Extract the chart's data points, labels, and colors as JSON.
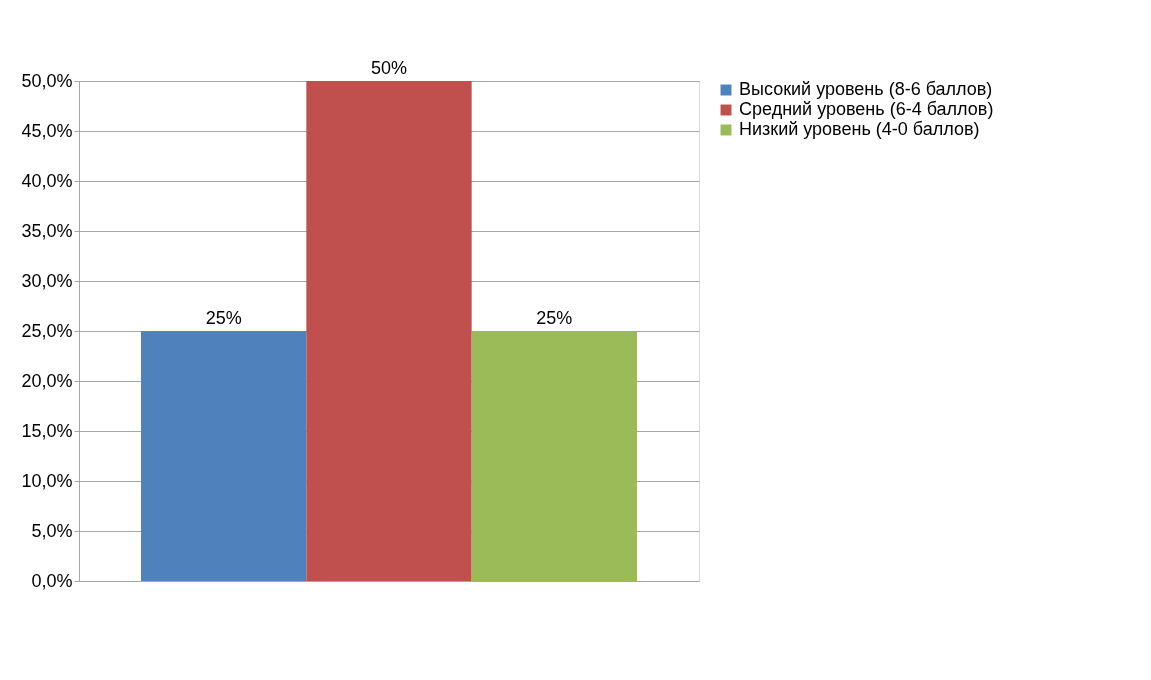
{
  "chart_data": {
    "type": "bar",
    "categories": [
      null
    ],
    "series": [
      {
        "name": "Высокий уровень (8-6 баллов)",
        "color": "#4f81bd",
        "values": [
          25
        ],
        "value_labels": [
          "25%"
        ]
      },
      {
        "name": "Средний уровень (6-4 баллов)",
        "color": "#c0504d",
        "values": [
          50
        ],
        "value_labels": [
          "50%"
        ]
      },
      {
        "name": "Низкий уровень (4-0 баллов)",
        "color": "#9bbb59",
        "values": [
          25
        ],
        "value_labels": [
          "25%"
        ]
      }
    ],
    "ylim": [
      0,
      50
    ],
    "yticks": [
      {
        "value": 0,
        "label": "0,0%"
      },
      {
        "value": 5,
        "label": "5,0%"
      },
      {
        "value": 10,
        "label": "10,0%"
      },
      {
        "value": 15,
        "label": "15,0%"
      },
      {
        "value": 20,
        "label": "20,0%"
      },
      {
        "value": 25,
        "label": "25,0%"
      },
      {
        "value": 30,
        "label": "30,0%"
      },
      {
        "value": 35,
        "label": "35,0%"
      },
      {
        "value": 40,
        "label": "40,0%"
      },
      {
        "value": 45,
        "label": "45,0%"
      },
      {
        "value": 50,
        "label": "50,0%"
      }
    ],
    "grid": "y",
    "legend": "right"
  }
}
